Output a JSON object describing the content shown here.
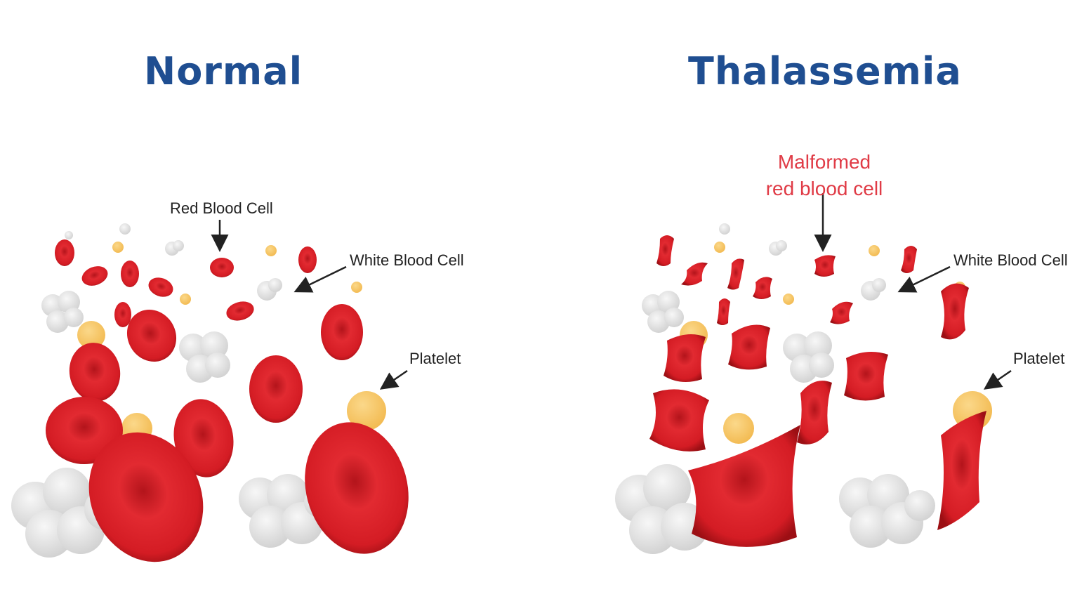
{
  "titles": {
    "normal": "Normal",
    "thalassemia": "Thalassemia"
  },
  "normal_panel": {
    "labels": {
      "rbc": "Red Blood Cell",
      "wbc": "White Blood Cell",
      "platelet": "Platelet"
    }
  },
  "thal_panel": {
    "labels": {
      "malformed_line1": "Malformed",
      "malformed_line2": "red blood cell",
      "wbc": "White Blood Cell",
      "platelet": "Platelet"
    }
  },
  "colors": {
    "title": "#1f4e91",
    "rbc": "#d81f26",
    "wbc": "#e2e2e2",
    "platelet": "#f7c768",
    "malformed_label": "#e03b46"
  }
}
